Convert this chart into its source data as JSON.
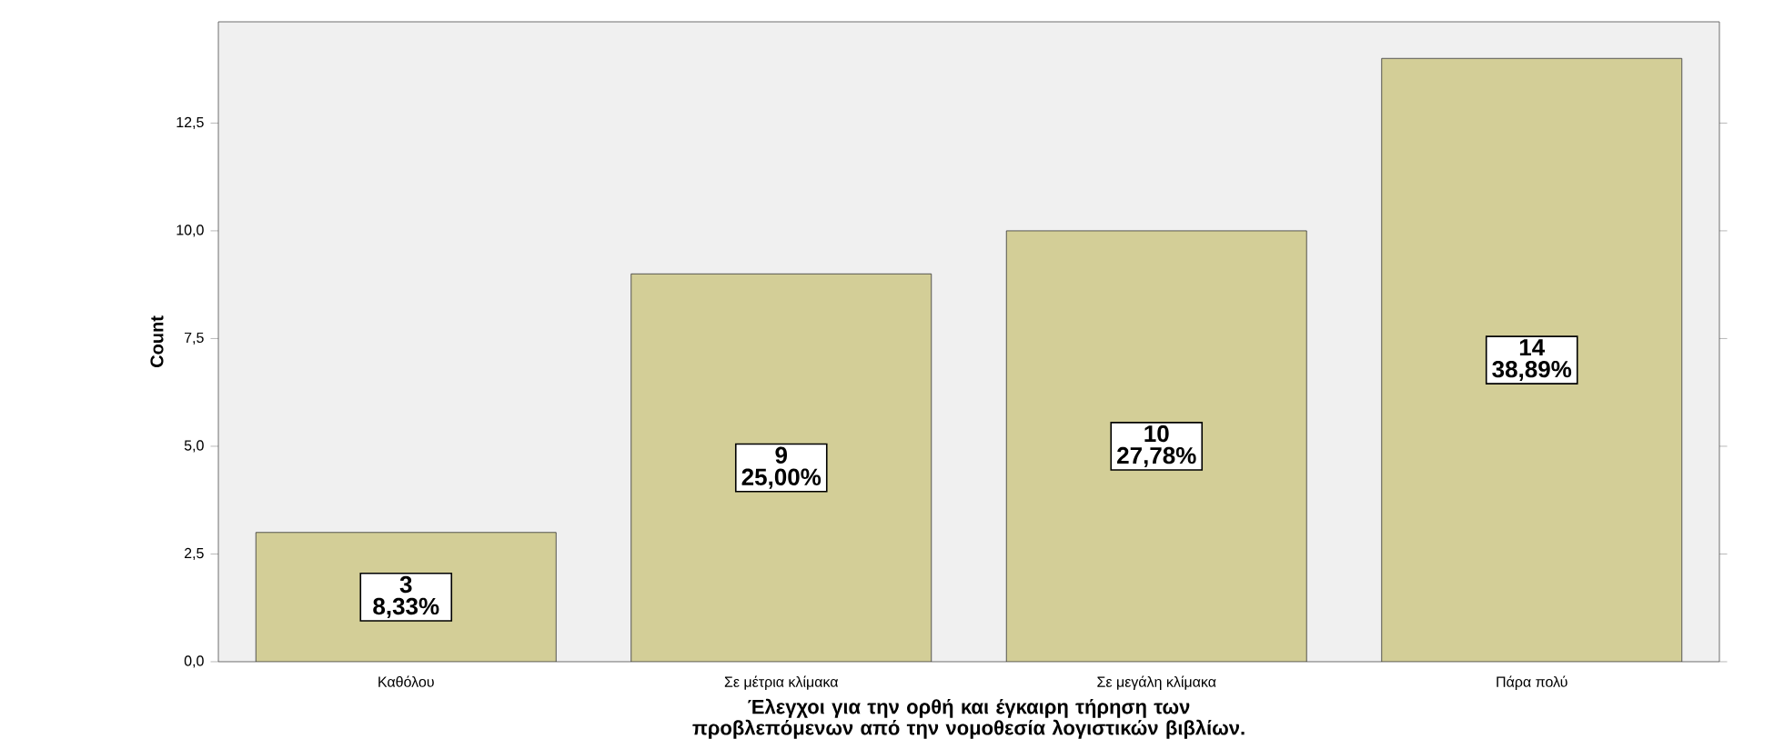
{
  "chart_data": {
    "type": "bar",
    "xlabel": "Έλεγχοι για την ορθή και έγκαιρη τήρηση των προβλεπόμενων από την νομοθεσία λογιστικών βιβλίων.",
    "ylabel": "Count",
    "categories": [
      "Καθόλου",
      "Σε μέτρια κλίμακα",
      "Σε μεγάλη κλίμακα",
      "Πάρα πολύ"
    ],
    "values": [
      3,
      9,
      10,
      14
    ],
    "color": "#d3ce97",
    "value_labels": [
      "3 8,33%",
      "9 25,00%",
      "10 27,78%",
      "14 38,89%"
    ],
    "ylim": [
      0,
      14.85
    ],
    "yticks": [
      {
        "value": 0,
        "label": "0,0"
      },
      {
        "value": 2.5,
        "label": "2,5"
      },
      {
        "value": 5,
        "label": "5,0"
      },
      {
        "value": 7.5,
        "label": "7,5"
      },
      {
        "value": 10,
        "label": "10,0"
      },
      {
        "value": 12.5,
        "label": "12,5"
      }
    ],
    "grid": false
  }
}
